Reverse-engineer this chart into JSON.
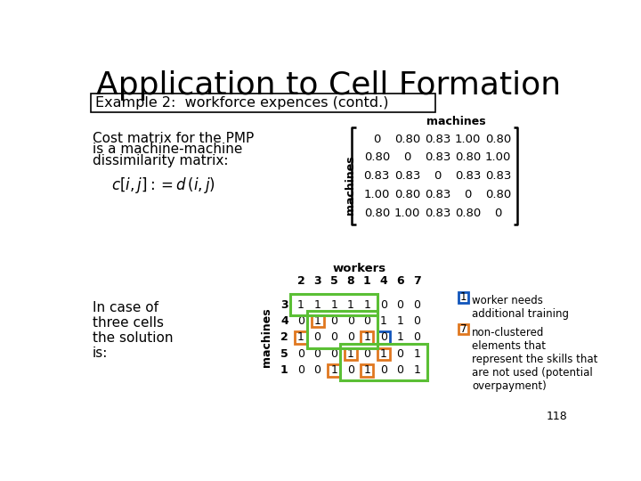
{
  "title": "Application to Cell Formation",
  "subtitle": "Example 2:  workforce expences (contd.)",
  "bg_color": "#ffffff",
  "title_color": "#000000",
  "left_text1": "Cost matrix for the PMP",
  "left_text2": "is a machine-machine",
  "left_text3": "dissimilarity matrix:",
  "cost_matrix_label_top": "machines",
  "cost_matrix_label_left": "machines",
  "cost_matrix": [
    [
      0,
      0.8,
      0.83,
      1.0,
      0.8
    ],
    [
      0.8,
      0,
      0.83,
      0.8,
      1.0
    ],
    [
      0.83,
      0.83,
      0,
      0.83,
      0.83
    ],
    [
      1.0,
      0.8,
      0.83,
      0,
      0.8
    ],
    [
      0.8,
      1.0,
      0.83,
      0.8,
      0
    ]
  ],
  "workers_label": "workers",
  "worker_cols": [
    "2",
    "3",
    "5",
    "8",
    "1",
    "4",
    "6",
    "7"
  ],
  "machine_rows": [
    "3",
    "4",
    "2",
    "5",
    "1"
  ],
  "assignment_matrix": [
    [
      1,
      1,
      1,
      1,
      1,
      0,
      0,
      0
    ],
    [
      0,
      1,
      0,
      0,
      0,
      1,
      1,
      0
    ],
    [
      1,
      0,
      0,
      0,
      1,
      0,
      1,
      0
    ],
    [
      0,
      0,
      0,
      1,
      0,
      1,
      0,
      1
    ],
    [
      0,
      0,
      1,
      0,
      1,
      0,
      0,
      1
    ]
  ],
  "orange_cells": [
    [
      1,
      1
    ],
    [
      2,
      0
    ],
    [
      2,
      4
    ],
    [
      3,
      3
    ],
    [
      3,
      5
    ],
    [
      4,
      2
    ],
    [
      4,
      4
    ]
  ],
  "blue_cells": [
    [
      2,
      5
    ]
  ],
  "page_num": "118",
  "in_case_text": [
    "In case of",
    "three cells",
    "the solution",
    "is:"
  ]
}
